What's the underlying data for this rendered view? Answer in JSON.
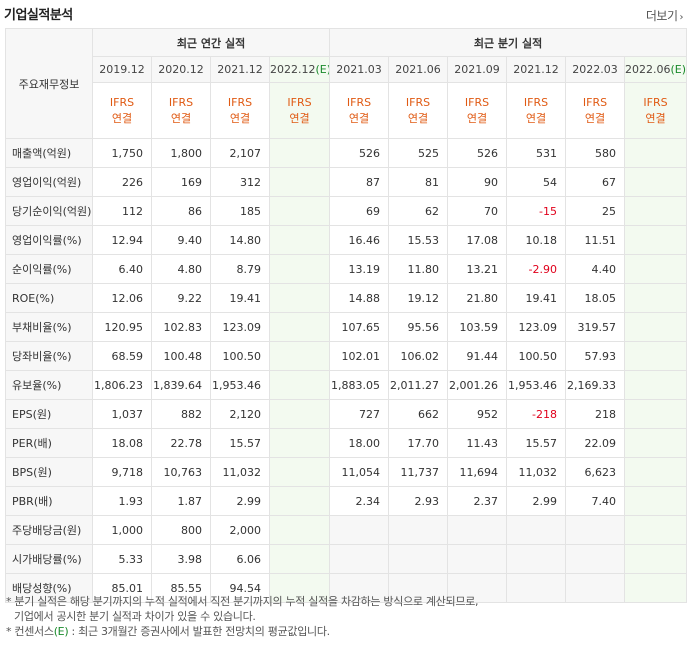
{
  "section_title": "기업실적분석",
  "more_label": "더보기",
  "more_arrow": "›",
  "head": {
    "row_label": "주요재무정보",
    "annual_group": "최근 연간 실적",
    "quarter_group": "최근 분기 실적",
    "annual_periods": [
      "2019.12",
      "2020.12",
      "2021.12",
      "2022.12"
    ],
    "quarter_periods": [
      "2021.03",
      "2021.06",
      "2021.09",
      "2021.12",
      "2022.03",
      "2022.06"
    ],
    "consensus_mark": "(E)",
    "ifrs_top": "IFRS",
    "ifrs_bottom": "연결"
  },
  "rows": [
    {
      "label": "매출액(억원)",
      "annual": [
        "1,750",
        "1,800",
        "2,107",
        ""
      ],
      "quarter": [
        "526",
        "525",
        "526",
        "531",
        "580",
        ""
      ]
    },
    {
      "label": "영업이익(억원)",
      "annual": [
        "226",
        "169",
        "312",
        ""
      ],
      "quarter": [
        "87",
        "81",
        "90",
        "54",
        "67",
        ""
      ]
    },
    {
      "label": "당기순이익(억원)",
      "annual": [
        "112",
        "86",
        "185",
        ""
      ],
      "quarter": [
        "69",
        "62",
        "70",
        "-15",
        "25",
        ""
      ]
    },
    {
      "label": "영업이익률(%)",
      "annual": [
        "12.94",
        "9.40",
        "14.80",
        ""
      ],
      "quarter": [
        "16.46",
        "15.53",
        "17.08",
        "10.18",
        "11.51",
        ""
      ]
    },
    {
      "label": "순이익률(%)",
      "annual": [
        "6.40",
        "4.80",
        "8.79",
        ""
      ],
      "quarter": [
        "13.19",
        "11.80",
        "13.21",
        "-2.90",
        "4.40",
        ""
      ]
    },
    {
      "label": "ROE(%)",
      "annual": [
        "12.06",
        "9.22",
        "19.41",
        ""
      ],
      "quarter": [
        "14.88",
        "19.12",
        "21.80",
        "19.41",
        "18.05",
        ""
      ]
    },
    {
      "label": "부채비율(%)",
      "annual": [
        "120.95",
        "102.83",
        "123.09",
        ""
      ],
      "quarter": [
        "107.65",
        "95.56",
        "103.59",
        "123.09",
        "319.57",
        ""
      ]
    },
    {
      "label": "당좌비율(%)",
      "annual": [
        "68.59",
        "100.48",
        "100.50",
        ""
      ],
      "quarter": [
        "102.01",
        "106.02",
        "91.44",
        "100.50",
        "57.93",
        ""
      ]
    },
    {
      "label": "유보율(%)",
      "annual": [
        "1,806.23",
        "1,839.64",
        "1,953.46",
        ""
      ],
      "quarter": [
        "1,883.05",
        "2,011.27",
        "2,001.26",
        "1,953.46",
        "2,169.33",
        ""
      ]
    },
    {
      "label": "EPS(원)",
      "annual": [
        "1,037",
        "882",
        "2,120",
        ""
      ],
      "quarter": [
        "727",
        "662",
        "952",
        "-218",
        "218",
        ""
      ]
    },
    {
      "label": "PER(배)",
      "annual": [
        "18.08",
        "22.78",
        "15.57",
        ""
      ],
      "quarter": [
        "18.00",
        "17.70",
        "11.43",
        "15.57",
        "22.09",
        ""
      ]
    },
    {
      "label": "BPS(원)",
      "annual": [
        "9,718",
        "10,763",
        "11,032",
        ""
      ],
      "quarter": [
        "11,054",
        "11,737",
        "11,694",
        "11,032",
        "6,623",
        ""
      ]
    },
    {
      "label": "PBR(배)",
      "annual": [
        "1.93",
        "1.87",
        "2.99",
        ""
      ],
      "quarter": [
        "2.34",
        "2.93",
        "2.37",
        "2.99",
        "7.40",
        ""
      ]
    },
    {
      "label": "주당배당금(원)",
      "annual": [
        "1,000",
        "800",
        "2,000",
        ""
      ],
      "quarter": [
        "",
        "",
        "",
        "",
        "",
        ""
      ]
    },
    {
      "label": "시가배당률(%)",
      "annual": [
        "5.33",
        "3.98",
        "6.06",
        ""
      ],
      "quarter": [
        "",
        "",
        "",
        "",
        "",
        ""
      ]
    },
    {
      "label": "배당성향(%)",
      "annual": [
        "85.01",
        "85.55",
        "94.54",
        ""
      ],
      "quarter": [
        "",
        "",
        "",
        "",
        "",
        ""
      ]
    }
  ],
  "notes": [
    "* 분기 실적은 해당 분기까지의 누적 실적에서 직전 분기까지의 누적 실적을 차감하는 방식으로 계산되므로,",
    "기업에서 공시한 분기 실적과 차이가 있을 수 있습니다.",
    "* 컨센서스",
    "(E)",
    " : 최근 3개월간 증권사에서 발표한 전망치의 평균값입니다."
  ]
}
